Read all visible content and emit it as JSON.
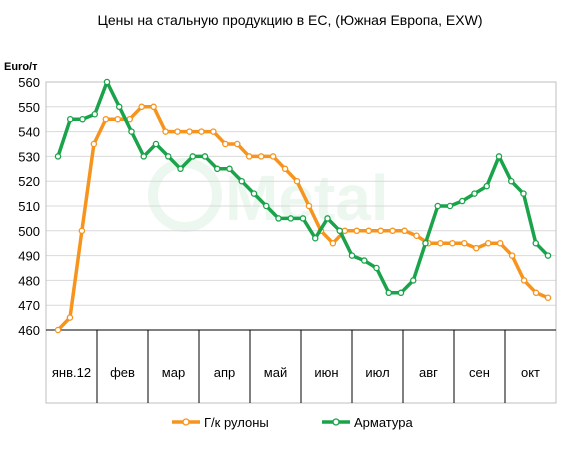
{
  "chart_data": {
    "type": "line",
    "title": "Цены на стальную продукцию в ЕС, (Южная Европа,  EXW)",
    "ylabel": "Euro/т",
    "ylim": [
      460,
      560
    ],
    "y_ticks": [
      "460",
      "470",
      "480",
      "490",
      "500",
      "510",
      "520",
      "530",
      "540",
      "550",
      "560"
    ],
    "months": [
      "янв.12",
      "фев",
      "мар",
      "апр",
      "май",
      "июн",
      "июл",
      "авг",
      "сен",
      "окт"
    ],
    "grid": true,
    "legend_position": "bottom",
    "series": [
      {
        "name": "Г/к рулоны",
        "color": "#f7941d",
        "values": [
          460,
          465,
          500,
          535,
          545,
          545,
          545,
          550,
          550,
          540,
          540,
          540,
          540,
          540,
          535,
          535,
          530,
          530,
          530,
          525,
          520,
          510,
          500,
          495,
          500,
          500,
          500,
          500,
          500,
          500,
          498,
          495,
          495,
          495,
          495,
          493,
          495,
          495,
          490,
          480,
          475,
          473
        ]
      },
      {
        "name": "Арматура",
        "color": "#1aa34a",
        "values": [
          530,
          545,
          545,
          547,
          560,
          550,
          540,
          530,
          535,
          530,
          525,
          530,
          530,
          525,
          525,
          520,
          515,
          510,
          505,
          505,
          505,
          497,
          505,
          500,
          490,
          488,
          485,
          475,
          475,
          480,
          495,
          510,
          510,
          512,
          515,
          518,
          530,
          520,
          515,
          495,
          490
        ]
      }
    ]
  }
}
